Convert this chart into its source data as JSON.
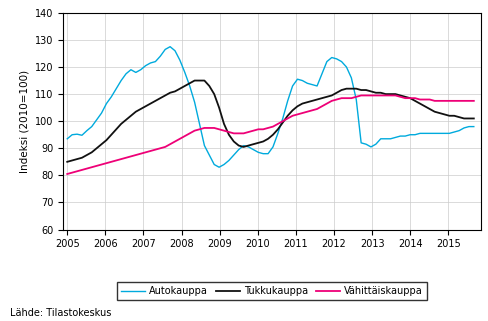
{
  "title": "",
  "ylabel": "Indeksi (2010=100)",
  "source_text": "Lähde: Tilastokeskus",
  "ylim": [
    60,
    140
  ],
  "yticks": [
    60,
    70,
    80,
    90,
    100,
    110,
    120,
    130,
    140
  ],
  "xlim_start": 2004.9,
  "xlim_end": 2015.85,
  "xticks": [
    2005,
    2006,
    2007,
    2008,
    2009,
    2010,
    2011,
    2012,
    2013,
    2014,
    2015
  ],
  "colors": {
    "auto": "#00AADD",
    "tukku": "#111111",
    "vahittais": "#EE0077"
  },
  "legend_labels": [
    "Autokauppa",
    "Tukkukauppa",
    "Vähittäiskauppa"
  ],
  "auto": [
    93.5,
    95.0,
    95.2,
    94.8,
    96.5,
    98.0,
    100.5,
    103.0,
    106.5,
    109.0,
    112.0,
    115.0,
    117.5,
    119.0,
    118.0,
    119.0,
    120.5,
    121.5,
    122.0,
    124.0,
    126.5,
    127.5,
    126.0,
    122.5,
    118.0,
    113.0,
    107.0,
    99.0,
    91.0,
    87.5,
    84.0,
    83.0,
    84.0,
    85.5,
    87.5,
    89.5,
    91.0,
    90.5,
    89.5,
    88.5,
    88.0,
    88.0,
    90.5,
    95.5,
    101.0,
    107.5,
    113.0,
    115.5,
    115.0,
    114.0,
    113.5,
    113.0,
    117.5,
    122.0,
    123.5,
    123.0,
    122.0,
    120.0,
    116.0,
    108.0,
    92.0,
    91.5,
    90.5,
    91.5,
    93.5,
    93.5,
    93.5,
    94.0,
    94.5,
    94.5,
    95.0,
    95.0,
    95.5,
    95.5,
    95.5,
    95.5,
    95.5,
    95.5,
    95.5,
    96.0,
    96.5,
    97.5,
    98.0,
    98.0
  ],
  "tukku": [
    85.0,
    85.5,
    86.0,
    86.5,
    87.5,
    88.5,
    90.0,
    91.5,
    93.0,
    95.0,
    97.0,
    99.0,
    100.5,
    102.0,
    103.5,
    104.5,
    105.5,
    106.5,
    107.5,
    108.5,
    109.5,
    110.5,
    111.0,
    112.0,
    113.0,
    114.0,
    115.0,
    115.0,
    115.0,
    113.0,
    110.0,
    105.0,
    99.0,
    95.0,
    92.5,
    91.0,
    90.5,
    91.0,
    91.5,
    92.0,
    92.5,
    93.5,
    95.0,
    97.0,
    99.5,
    102.0,
    104.0,
    105.5,
    106.5,
    107.0,
    107.5,
    108.0,
    108.5,
    109.0,
    109.5,
    110.5,
    111.5,
    112.0,
    112.0,
    112.0,
    111.5,
    111.5,
    111.0,
    110.5,
    110.5,
    110.0,
    110.0,
    110.0,
    109.5,
    109.0,
    108.5,
    107.5,
    106.5,
    105.5,
    104.5,
    103.5,
    103.0,
    102.5,
    102.0,
    102.0,
    101.5,
    101.0,
    101.0,
    101.0
  ],
  "vahittais": [
    80.5,
    81.0,
    81.5,
    82.0,
    82.5,
    83.0,
    83.5,
    84.0,
    84.5,
    85.0,
    85.5,
    86.0,
    86.5,
    87.0,
    87.5,
    88.0,
    88.5,
    89.0,
    89.5,
    90.0,
    90.5,
    91.5,
    92.5,
    93.5,
    94.5,
    95.5,
    96.5,
    97.0,
    97.5,
    97.5,
    97.5,
    97.0,
    96.5,
    96.0,
    95.5,
    95.5,
    95.5,
    96.0,
    96.5,
    97.0,
    97.0,
    97.5,
    98.0,
    99.0,
    100.0,
    101.0,
    102.0,
    102.5,
    103.0,
    103.5,
    104.0,
    104.5,
    105.5,
    106.5,
    107.5,
    108.0,
    108.5,
    108.5,
    108.5,
    109.0,
    109.5,
    109.5,
    109.5,
    109.5,
    109.5,
    109.5,
    109.5,
    109.5,
    109.0,
    108.5,
    108.5,
    108.5,
    108.0,
    108.0,
    108.0,
    107.5,
    107.5,
    107.5,
    107.5,
    107.5,
    107.5,
    107.5,
    107.5,
    107.5
  ]
}
